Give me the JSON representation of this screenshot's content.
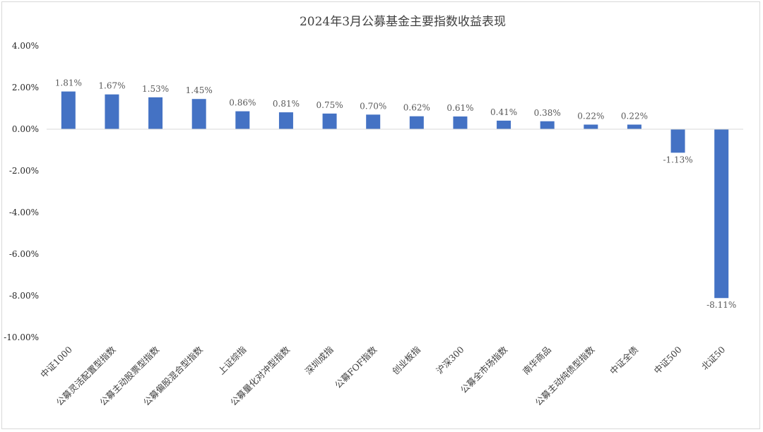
{
  "chart_data": {
    "type": "bar",
    "title": "2024年3月公募基金主要指数收益表现",
    "categories": [
      "中证1000",
      "公募灵活配置型指数",
      "公募主动股票型指数",
      "公募偏股混合型指数",
      "上证综指",
      "公募量化对冲型指数",
      "深圳成指",
      "公募FOF指数",
      "创业板指",
      "沪深300",
      "公募全市场指数",
      "南华商品",
      "公募主动纯债型指数",
      "中证全债",
      "中证500",
      "北证50"
    ],
    "values": [
      1.81,
      1.67,
      1.53,
      1.45,
      0.86,
      0.81,
      0.75,
      0.7,
      0.62,
      0.61,
      0.41,
      0.38,
      0.22,
      0.22,
      -1.13,
      -8.11
    ],
    "data_labels": [
      "1.81%",
      "1.67%",
      "1.53%",
      "1.45%",
      "0.86%",
      "0.81%",
      "0.75%",
      "0.70%",
      "0.62%",
      "0.61%",
      "0.41%",
      "0.38%",
      "0.22%",
      "0.22%",
      "-1.13%",
      "-8.11%"
    ],
    "y_ticks": [
      4,
      2,
      0,
      -2,
      -4,
      -6,
      -8,
      -10
    ],
    "y_tick_labels": [
      "4.00%",
      "2.00%",
      "0.00%",
      "-2.00%",
      "-4.00%",
      "-6.00%",
      "-8.00%",
      "-10.00%"
    ],
    "ylim": [
      -10,
      4
    ],
    "xlabel": "",
    "ylabel": "",
    "grid": false,
    "bar_color": "#4472C4"
  }
}
